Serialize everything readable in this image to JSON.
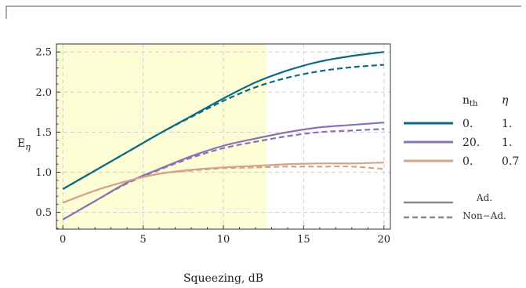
{
  "chart_data": {
    "type": "line",
    "xlabel": "Squeezing, dB",
    "ylabel": "E",
    "ylabel_sub": "η",
    "xlim": [
      -0.4,
      20.4
    ],
    "ylim": [
      0.29,
      2.6
    ],
    "xticks": [
      "0",
      "5",
      "10",
      "15",
      "20"
    ],
    "yticks": [
      "0.5",
      "1.0",
      "1.5",
      "2.0",
      "2.5"
    ],
    "shaded_region": {
      "x": [
        -0.4,
        12.7
      ],
      "color": "#fdfdd5"
    },
    "grid": true,
    "legend": {
      "headers": [
        "n",
        "th",
        "η"
      ],
      "rows": [
        {
          "color": "#0b6a84",
          "nth": "0.",
          "eta": "1."
        },
        {
          "color": "#8b72b4",
          "nth": "20.",
          "eta": "1."
        },
        {
          "color": "#d3a488",
          "nth": "0.",
          "eta": "0.7"
        }
      ],
      "styles": [
        {
          "label": "Ad.",
          "dash": false,
          "color": "#888888"
        },
        {
          "label": "Non−Ad.",
          "dash": true,
          "color": "#888888"
        }
      ]
    },
    "x": [
      0,
      2,
      4,
      6,
      8,
      10,
      12,
      14,
      16,
      18,
      20
    ],
    "series": [
      {
        "color": "#0b6a84",
        "dash": false,
        "values": [
          0.79,
          1.02,
          1.25,
          1.48,
          1.7,
          1.92,
          2.12,
          2.27,
          2.38,
          2.45,
          2.5
        ]
      },
      {
        "color": "#0b6a84",
        "dash": true,
        "values": [
          0.79,
          1.02,
          1.25,
          1.48,
          1.69,
          1.89,
          2.06,
          2.18,
          2.26,
          2.31,
          2.34
        ]
      },
      {
        "color": "#8b72b4",
        "dash": false,
        "values": [
          0.41,
          0.64,
          0.87,
          1.04,
          1.2,
          1.33,
          1.42,
          1.5,
          1.56,
          1.59,
          1.62
        ]
      },
      {
        "color": "#8b72b4",
        "dash": true,
        "values": [
          0.41,
          0.64,
          0.86,
          1.03,
          1.18,
          1.3,
          1.38,
          1.45,
          1.5,
          1.52,
          1.54
        ]
      },
      {
        "color": "#d3a488",
        "dash": false,
        "values": [
          0.62,
          0.77,
          0.89,
          0.98,
          1.03,
          1.06,
          1.08,
          1.1,
          1.11,
          1.11,
          1.12
        ]
      },
      {
        "color": "#d3a488",
        "dash": true,
        "values": [
          0.62,
          0.77,
          0.89,
          0.98,
          1.02,
          1.05,
          1.06,
          1.07,
          1.07,
          1.07,
          1.04
        ]
      }
    ]
  }
}
